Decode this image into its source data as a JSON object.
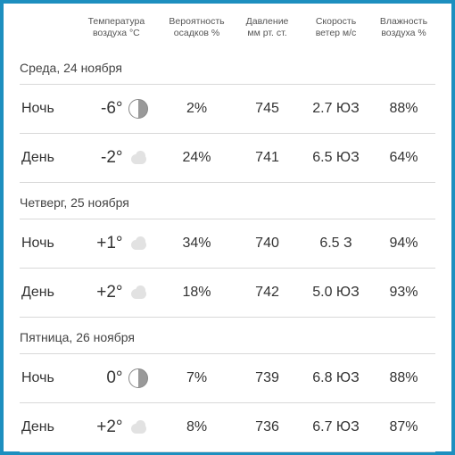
{
  "columns": {
    "temp": {
      "l1": "Температура",
      "l2": "воздуха °C"
    },
    "prec": {
      "l1": "Вероятность",
      "l2": "осадков %"
    },
    "press": {
      "l1": "Давление",
      "l2": "мм рт. ст."
    },
    "wind": {
      "l1": "Скорость",
      "l2": "ветер м/с"
    },
    "hum": {
      "l1": "Влажность",
      "l2": "воздуха %"
    }
  },
  "days": [
    {
      "title": "Среда, 24 ноября",
      "rows": [
        {
          "period": "Ночь",
          "temp": "-6°",
          "icon": "moon",
          "prec": "2%",
          "press": "745",
          "wind": "2.7 ЮЗ",
          "hum": "88%"
        },
        {
          "period": "День",
          "temp": "-2°",
          "icon": "cloud",
          "prec": "24%",
          "press": "741",
          "wind": "6.5 ЮЗ",
          "hum": "64%"
        }
      ]
    },
    {
      "title": "Четверг, 25 ноября",
      "rows": [
        {
          "period": "Ночь",
          "temp": "+1°",
          "icon": "cloud",
          "prec": "34%",
          "press": "740",
          "wind": "6.5 З",
          "hum": "94%"
        },
        {
          "period": "День",
          "temp": "+2°",
          "icon": "cloud",
          "prec": "18%",
          "press": "742",
          "wind": "5.0 ЮЗ",
          "hum": "93%"
        }
      ]
    },
    {
      "title": "Пятница, 26 ноября",
      "rows": [
        {
          "period": "Ночь",
          "temp": "0°",
          "icon": "moon",
          "prec": "7%",
          "press": "739",
          "wind": "6.8 ЮЗ",
          "hum": "88%"
        },
        {
          "period": "День",
          "temp": "+2°",
          "icon": "cloud",
          "prec": "8%",
          "press": "736",
          "wind": "6.7 ЮЗ",
          "hum": "87%"
        }
      ]
    }
  ],
  "style": {
    "border_color": "#1d8fbf",
    "grid_color": "#d9d9d9",
    "header_fontsize": 10.5,
    "period_fontsize": 16,
    "temp_fontsize": 19,
    "cell_fontsize": 16
  }
}
